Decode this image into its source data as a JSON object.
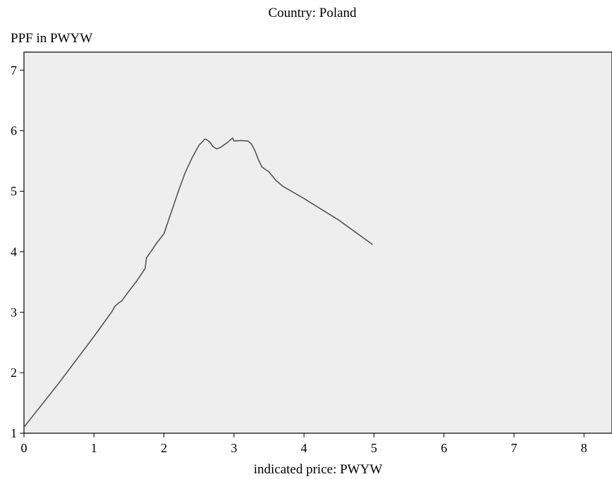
{
  "chart_data": {
    "type": "line",
    "title": "Country: Poland",
    "xlabel": "indicated price: PWYW",
    "ylabel": "PPF in PWYW",
    "xlim": [
      0,
      8.4
    ],
    "ylim": [
      1,
      7.3
    ],
    "xticks": [
      0,
      1,
      2,
      3,
      4,
      5,
      6,
      7,
      8
    ],
    "yticks": [
      1,
      2,
      3,
      4,
      5,
      6,
      7
    ],
    "grid": false,
    "colors": {
      "plot_background": "#eeeeee",
      "line": "#555555",
      "frame": "#000000"
    },
    "series": [
      {
        "x": [
          0.0,
          0.5,
          1.0,
          1.2,
          1.25,
          1.3,
          1.35,
          1.4,
          1.5,
          1.6,
          1.7,
          1.73,
          1.75,
          1.8,
          1.9,
          2.0,
          2.1,
          2.2,
          2.3,
          2.4,
          2.5,
          2.55,
          2.58,
          2.6,
          2.65,
          2.7,
          2.75,
          2.8,
          2.85,
          2.9,
          2.95,
          2.98,
          3.0,
          3.1,
          3.2,
          3.25,
          3.3,
          3.35,
          3.4,
          3.5,
          3.6,
          3.7,
          4.0,
          4.5,
          4.98
        ],
        "y": [
          1.1,
          1.83,
          2.6,
          2.92,
          3.0,
          3.1,
          3.15,
          3.19,
          3.35,
          3.5,
          3.67,
          3.72,
          3.9,
          3.98,
          4.15,
          4.3,
          4.64,
          4.98,
          5.3,
          5.55,
          5.76,
          5.82,
          5.86,
          5.86,
          5.82,
          5.74,
          5.7,
          5.72,
          5.76,
          5.8,
          5.85,
          5.88,
          5.83,
          5.84,
          5.83,
          5.78,
          5.67,
          5.52,
          5.4,
          5.32,
          5.18,
          5.08,
          4.88,
          4.52,
          4.12
        ]
      }
    ]
  }
}
